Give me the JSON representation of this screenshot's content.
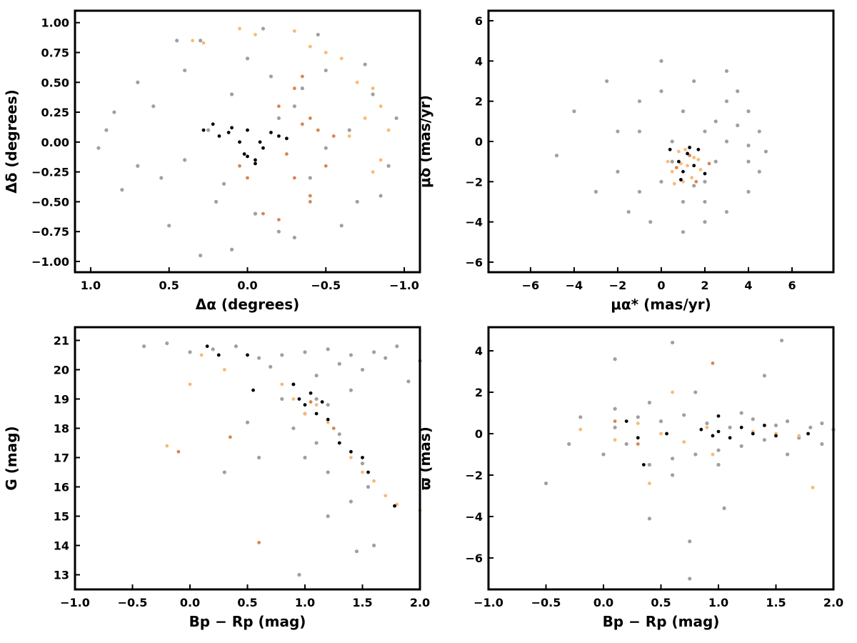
{
  "chart_data": [
    {
      "type": "scatter",
      "xlabel": "Δα (degrees)",
      "ylabel": "Δδ (degrees)",
      "xlim": [
        1.1,
        -1.1
      ],
      "ylim": [
        -1.09,
        1.1
      ],
      "xticks": [
        {
          "value": 1.0,
          "label": "1.0"
        },
        0.5,
        {
          "value": 0.0,
          "label": "0.0"
        },
        {
          "value": -0.5,
          "label": "−0.5"
        },
        {
          "value": -1.0,
          "label": "−1.0"
        }
      ],
      "yticks": [
        {
          "value": 1.0,
          "label": "1.00"
        },
        0.75,
        {
          "value": 0.5,
          "label": "0.50"
        },
        0.25,
        {
          "value": 0.0,
          "label": "0.00"
        },
        {
          "value": -0.25,
          "label": "−0.25"
        },
        {
          "value": -0.5,
          "label": "−0.50"
        },
        {
          "value": -0.75,
          "label": "−0.75"
        },
        {
          "value": -1.0,
          "label": "−1.00"
        }
      ],
      "series": [
        {
          "color": "#a0a0a0",
          "x": [
            0.9,
            0.7,
            0.5,
            0.3,
            0.1,
            -0.1,
            -0.3,
            -0.5,
            -0.7,
            -0.9,
            0.8,
            0.6,
            0.4,
            0.2,
            0.0,
            -0.2,
            -0.4,
            -0.6,
            -0.8,
            0.85,
            0.55,
            0.25,
            -0.05,
            -0.35,
            -0.65,
            -0.85,
            0.7,
            0.4,
            0.1,
            -0.2,
            -0.5,
            -0.75,
            0.45,
            0.15,
            -0.15,
            -0.45,
            0.95,
            -0.95,
            0.3,
            -0.3
          ],
          "values": [
            0.1,
            0.5,
            -0.7,
            0.85,
            -0.9,
            0.95,
            -0.8,
            0.6,
            -0.5,
            -0.2,
            -0.4,
            0.3,
            0.6,
            -0.5,
            0.7,
            0.2,
            -0.3,
            -0.7,
            0.4,
            0.25,
            -0.3,
            0.1,
            -0.6,
            0.45,
            0.1,
            -0.45,
            -0.2,
            -0.15,
            0.4,
            -0.75,
            -0.05,
            0.65,
            0.85,
            -0.35,
            0.55,
            0.9,
            -0.05,
            0.2,
            -0.95,
            0.3
          ]
        },
        {
          "color": "#f9b977",
          "x": [
            0.35,
            0.28,
            0.05,
            -0.05,
            -0.3,
            -0.4,
            -0.5,
            -0.6,
            -0.7,
            -0.8,
            -0.85,
            -0.9,
            -0.75,
            -0.85,
            -0.8,
            -0.65
          ],
          "values": [
            0.85,
            0.83,
            0.95,
            0.9,
            0.93,
            0.8,
            0.75,
            0.7,
            0.5,
            0.45,
            0.3,
            0.1,
            0.2,
            -0.15,
            -0.25,
            0.05
          ]
        },
        {
          "color": "#d8854f",
          "x": [
            -0.2,
            -0.3,
            -0.35,
            -0.4,
            -0.45,
            -0.25,
            -0.3,
            -0.4,
            -0.5,
            -0.55,
            -0.35,
            -0.4,
            0.05,
            0.0,
            -0.1,
            -0.2
          ],
          "values": [
            0.3,
            0.45,
            0.55,
            0.2,
            0.1,
            -0.1,
            -0.3,
            -0.45,
            -0.2,
            0.05,
            0.15,
            -0.5,
            -0.2,
            -0.3,
            -0.6,
            -0.65
          ]
        },
        {
          "color": "#000000",
          "x": [
            0.28,
            0.22,
            0.18,
            0.12,
            0.1,
            0.05,
            0.0,
            -0.05,
            -0.1,
            -0.15,
            -0.2,
            -0.25,
            0.0,
            -0.05,
            0.02,
            -0.08
          ],
          "values": [
            0.1,
            0.15,
            0.05,
            0.08,
            0.12,
            0.0,
            -0.12,
            -0.15,
            -0.05,
            0.08,
            0.05,
            0.03,
            0.1,
            -0.18,
            -0.1,
            0.0
          ]
        }
      ]
    },
    {
      "type": "scatter",
      "xlabel": "μα* (mas/yr)",
      "ylabel": "μδ (mas/yr)",
      "xlim": [
        -7.93,
        7.9
      ],
      "ylim": [
        -6.5,
        6.5
      ],
      "xticks": [
        {
          "value": -6,
          "label": "−6"
        },
        {
          "value": -4,
          "label": "−4"
        },
        {
          "value": -2,
          "label": "−2"
        },
        0,
        2,
        4,
        6
      ],
      "yticks": [
        6,
        4,
        2,
        0,
        {
          "value": -2,
          "label": "−2"
        },
        {
          "value": -4,
          "label": "−4"
        },
        {
          "value": -6,
          "label": "−6"
        }
      ],
      "series": [
        {
          "color": "#a0a0a0",
          "x": [
            -4.8,
            -4,
            -3,
            -2.5,
            -2,
            -1.5,
            -1,
            -0.5,
            0,
            0.5,
            1,
            1.5,
            2,
            2.5,
            3,
            3.5,
            4,
            4.5,
            4.8,
            -2,
            -1,
            0,
            1,
            2,
            3,
            4,
            0.5,
            1.5,
            2.5,
            3.5,
            4.5,
            -1,
            0,
            1,
            2,
            3,
            4,
            2,
            3,
            4
          ],
          "values": [
            -0.7,
            1.5,
            -2.5,
            3,
            0.5,
            -3.5,
            2,
            -4,
            4,
            0,
            -4.5,
            3,
            -2,
            1,
            -3.5,
            2.5,
            -1,
            0.5,
            -0.5,
            -1.5,
            -2.5,
            2.5,
            1.5,
            -3,
            0,
            -2.5,
            -1,
            -2.2,
            -1,
            0.8,
            -1.5,
            0.5,
            -2,
            -3,
            0.5,
            2,
            1.5,
            -4,
            3.5,
            -0.2
          ]
        },
        {
          "color": "#f9b977",
          "x": [
            0.3,
            0.5,
            0.8,
            1.0,
            1.2,
            1.5,
            1.8,
            0.6,
            1.1,
            1.4,
            0.9,
            1.7
          ],
          "values": [
            -1,
            -1.5,
            -0.5,
            -2,
            -1.2,
            -0.8,
            -1.4,
            -2.1,
            -0.4,
            -1.8,
            -1.1,
            -0.9
          ]
        },
        {
          "color": "#d8854f",
          "x": [
            0.7,
            1.3,
            1.6,
            2.2
          ],
          "values": [
            -1.3,
            -0.7,
            -2.0,
            -1.1
          ]
        },
        {
          "color": "#000000",
          "x": [
            0.4,
            0.8,
            1.0,
            1.2,
            1.5,
            1.7,
            2.0,
            0.9,
            1.3
          ],
          "values": [
            -0.4,
            -1.0,
            -1.5,
            -0.6,
            -1.2,
            -0.4,
            -1.6,
            -1.9,
            -0.3
          ]
        }
      ]
    },
    {
      "type": "scatter",
      "xlabel": "Bp − Rp (mag)",
      "ylabel": "G (mag)",
      "xlim": [
        -1.0,
        2.0
      ],
      "ylim": [
        12.5,
        21.45
      ],
      "xticks": [
        {
          "value": -1.0,
          "label": "−1.0"
        },
        {
          "value": -0.5,
          "label": "−0.5"
        },
        {
          "value": 0.0,
          "label": "0.0"
        },
        0.5,
        {
          "value": 1.0,
          "label": "1.0"
        },
        1.5,
        {
          "value": 2.0,
          "label": "2.0"
        }
      ],
      "yticks": [
        21,
        20,
        19,
        18,
        17,
        16,
        15,
        14,
        13
      ],
      "series": [
        {
          "color": "#a0a0a0",
          "x": [
            -0.4,
            -0.2,
            0.0,
            0.2,
            0.4,
            0.6,
            0.8,
            1.0,
            1.2,
            1.4,
            1.6,
            1.8,
            2.0,
            0.7,
            0.9,
            1.1,
            1.3,
            1.5,
            1.7,
            0.8,
            1.0,
            1.2,
            1.4,
            0.9,
            1.1,
            1.3,
            1.5,
            1.0,
            1.2,
            1.4,
            0.5,
            1.6,
            1.9,
            0.3,
            1.45,
            1.55,
            1.2,
            0.6,
            0.95,
            1.1
          ],
          "values": [
            20.8,
            20.9,
            20.6,
            20.7,
            20.8,
            20.4,
            20.5,
            20.6,
            20.7,
            20.5,
            20.6,
            20.8,
            20.3,
            20.1,
            19.5,
            19.8,
            20.2,
            20.0,
            20.4,
            19.0,
            18.5,
            18.8,
            19.3,
            18.0,
            17.5,
            17.8,
            16.8,
            17.0,
            16.5,
            15.5,
            18.2,
            14.0,
            19.6,
            16.5,
            13.8,
            16.0,
            15.0,
            17.0,
            13.0,
            19.0
          ]
        },
        {
          "color": "#f9b977",
          "x": [
            0.1,
            0.3,
            0.8,
            0.9,
            1.0,
            1.1,
            1.2,
            1.3,
            1.4,
            1.5,
            1.6,
            1.7,
            1.8,
            -0.2,
            0.0,
            2.0
          ],
          "values": [
            20.5,
            20.0,
            19.5,
            19.0,
            18.5,
            18.8,
            18.2,
            17.5,
            17.0,
            16.5,
            16.2,
            15.7,
            15.4,
            17.4,
            19.5,
            15.2
          ]
        },
        {
          "color": "#d8854f",
          "x": [
            -0.1,
            0.6,
            1.05,
            1.25,
            0.35
          ],
          "values": [
            17.2,
            14.1,
            18.9,
            18.0,
            17.7
          ]
        },
        {
          "color": "#000000",
          "x": [
            0.15,
            0.25,
            0.5,
            0.9,
            0.95,
            1.0,
            1.05,
            1.1,
            1.15,
            1.2,
            1.3,
            1.4,
            1.5,
            1.55,
            1.78,
            0.55
          ],
          "values": [
            20.8,
            20.5,
            20.5,
            19.5,
            19.0,
            18.8,
            19.2,
            18.5,
            18.9,
            18.3,
            17.5,
            17.2,
            17.0,
            16.5,
            15.35,
            19.3
          ]
        }
      ]
    },
    {
      "type": "scatter",
      "xlabel": "Bp − Rp (mag)",
      "ylabel": "ϖ (mas)",
      "xlim": [
        -1.0,
        2.0
      ],
      "ylim": [
        -7.52,
        5.14
      ],
      "xticks": [
        {
          "value": -1.0,
          "label": "−1.0"
        },
        {
          "value": -0.5,
          "label": "−0.5"
        },
        {
          "value": 0.0,
          "label": "0.0"
        },
        0.5,
        {
          "value": 1.0,
          "label": "1.0"
        },
        1.5,
        {
          "value": 2.0,
          "label": "2.0"
        }
      ],
      "yticks": [
        4,
        2,
        0,
        {
          "value": -2,
          "label": "−2"
        },
        {
          "value": -4,
          "label": "−4"
        },
        {
          "value": -6,
          "label": "−6"
        }
      ],
      "series": [
        {
          "color": "#a0a0a0",
          "x": [
            -0.5,
            -0.3,
            -0.2,
            0,
            0.1,
            0.2,
            0.3,
            0.4,
            0.5,
            0.6,
            0.7,
            0.8,
            0.9,
            1.0,
            1.1,
            1.2,
            1.3,
            1.4,
            1.5,
            1.6,
            1.7,
            1.8,
            1.9,
            2.0,
            0.1,
            0.4,
            0.6,
            0.8,
            1.0,
            1.2,
            1.4,
            1.6,
            0.75,
            0.75,
            1.05,
            0.6,
            0.4,
            1.55,
            0.1,
            1.9
          ],
          "values": [
            -2.4,
            -0.5,
            0.8,
            -1.0,
            1.2,
            -0.5,
            0.8,
            -1.5,
            0.6,
            -1.2,
            0.9,
            -1.0,
            0.5,
            -0.8,
            0.3,
            -0.6,
            0.7,
            -0.3,
            0.4,
            0.6,
            -0.2,
            0.3,
            0.5,
            0.2,
            0.3,
            1.5,
            -2.0,
            2.0,
            -1.5,
            1.0,
            2.8,
            -1.0,
            -7.0,
            -5.2,
            -3.6,
            4.4,
            -4.1,
            4.5,
            3.6,
            -0.5
          ]
        },
        {
          "color": "#f9b977",
          "x": [
            -0.2,
            0.1,
            0.3,
            0.5,
            0.7,
            0.9,
            1.1,
            1.3,
            1.5,
            1.7,
            0.4,
            1.82,
            0.95,
            0.6
          ],
          "values": [
            0.2,
            -0.3,
            0.5,
            0.0,
            -0.4,
            0.3,
            -0.2,
            0.1,
            0.0,
            -0.1,
            -2.4,
            -2.6,
            -1.0,
            2.0
          ]
        },
        {
          "color": "#d8854f",
          "x": [
            0.95,
            0.1,
            0.3
          ],
          "values": [
            3.4,
            0.6,
            -0.5
          ]
        },
        {
          "color": "#000000",
          "x": [
            0.2,
            0.3,
            0.55,
            0.85,
            0.95,
            1.0,
            1.1,
            1.2,
            1.3,
            1.4,
            1.5,
            1.78,
            0.35,
            1.0
          ],
          "values": [
            0.6,
            -0.2,
            0.0,
            0.2,
            -0.1,
            0.85,
            -0.2,
            0.3,
            0.0,
            0.4,
            -0.1,
            0.0,
            -1.5,
            0.1
          ]
        }
      ]
    }
  ]
}
